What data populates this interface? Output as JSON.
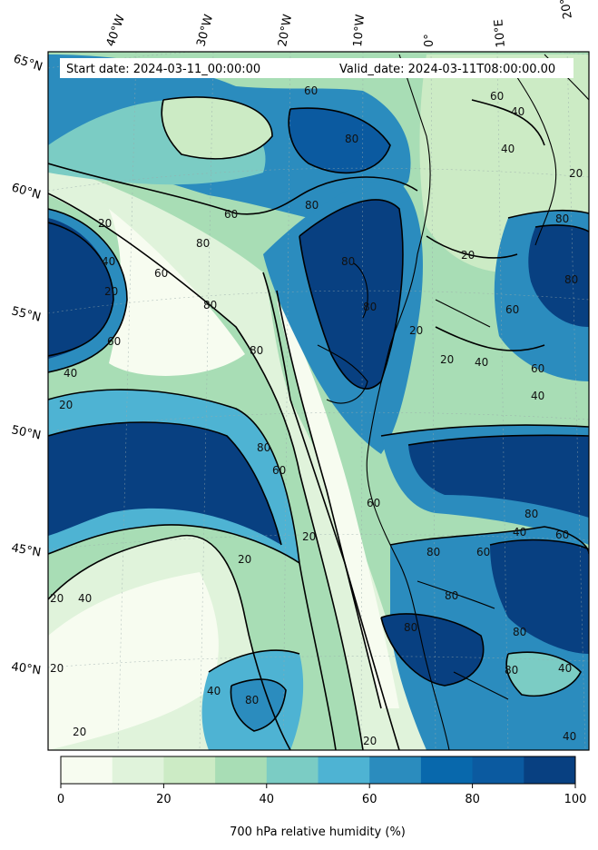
{
  "header": {
    "start_date": "Start date: 2024-03-11_00:00:00",
    "valid_date": "Valid_date: 2024-03-11T08:00:00.00"
  },
  "map": {
    "lon_labels": [
      "40°W",
      "30°W",
      "20°W",
      "10°W",
      "0°",
      "10°E",
      "20°E"
    ],
    "lat_labels": [
      "65°N",
      "60°N",
      "55°N",
      "50°N",
      "45°N",
      "40°N"
    ],
    "contour_levels": [
      20,
      40,
      60,
      80
    ],
    "contour_labels": [
      "60",
      "60",
      "80",
      "40",
      "40",
      "20",
      "20",
      "60",
      "80",
      "80",
      "20",
      "40",
      "80",
      "60",
      "80",
      "80",
      "20",
      "60",
      "20",
      "20",
      "40",
      "80",
      "60",
      "40",
      "80",
      "60",
      "40",
      "20",
      "80",
      "60",
      "60",
      "80",
      "80",
      "60",
      "80",
      "40",
      "80",
      "20",
      "20",
      "20",
      "40",
      "20",
      "80",
      "80",
      "60",
      "80",
      "40",
      "20",
      "80",
      "40",
      "40",
      "20"
    ]
  },
  "colorbar": {
    "label": "700 hPa relative humidity (%)",
    "ticks": [
      "0",
      "20",
      "40",
      "60",
      "80",
      "100"
    ],
    "colors": [
      "#f7fcf0",
      "#e0f3db",
      "#ccebc5",
      "#a8ddb5",
      "#7bccc4",
      "#4eb3d3",
      "#2b8cbe",
      "#0868ac",
      "#0b5aa0",
      "#084081"
    ]
  }
}
